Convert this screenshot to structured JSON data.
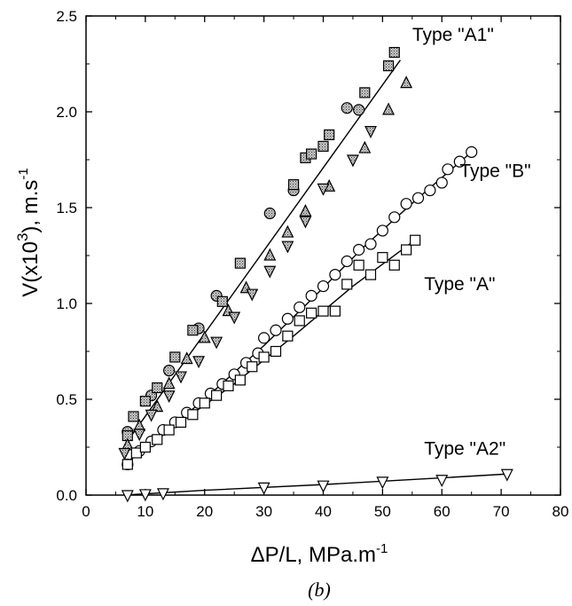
{
  "chart_data": {
    "type": "scatter",
    "caption": "(b)",
    "xlabel_main": "ΔP/L, MPa.m",
    "xlabel_sup": "-1",
    "ylabel_main": "V(x10",
    "ylabel_sup": "3",
    "ylabel_tail": "), m.s",
    "ylabel_tail_sup": "-1",
    "xlim": [
      0,
      80
    ],
    "ylim": [
      0,
      2.5
    ],
    "x_ticks": [
      0,
      10,
      20,
      30,
      40,
      50,
      60,
      70,
      80
    ],
    "y_ticks": [
      "0.0",
      "0.5",
      "1.0",
      "1.5",
      "2.0",
      "2.5"
    ],
    "grid": false,
    "annotations": [
      {
        "text": "Type \"A1\"",
        "x": 55,
        "y": 2.37
      },
      {
        "text": "Type \"B\"",
        "x": 63,
        "y": 1.66
      },
      {
        "text": "Type \"A\"",
        "x": 57,
        "y": 1.07
      },
      {
        "text": "Type \"A2\"",
        "x": 57,
        "y": 0.21
      }
    ],
    "fit_lines": [
      {
        "points": [
          [
            6.5,
            0.26
          ],
          [
            53,
            2.27
          ]
        ]
      },
      {
        "points": [
          [
            6.5,
            0.16
          ],
          [
            20,
            0.5
          ],
          [
            30,
            0.78
          ],
          [
            38,
            1.02
          ],
          [
            47,
            1.3
          ],
          [
            56,
            1.55
          ],
          [
            65,
            1.79
          ]
        ]
      },
      {
        "points": [
          [
            6.5,
            0.16
          ],
          [
            15,
            0.36
          ],
          [
            25,
            0.58
          ],
          [
            35,
            0.83
          ],
          [
            45,
            1.09
          ],
          [
            55,
            1.32
          ]
        ]
      },
      {
        "points": [
          [
            6.5,
            0.0
          ],
          [
            20,
            0.025
          ],
          [
            40,
            0.055
          ],
          [
            60,
            0.09
          ],
          [
            71,
            0.11
          ]
        ]
      }
    ],
    "series": [
      {
        "marker": "circle-filled",
        "points": [
          [
            7,
            0.33
          ],
          [
            11,
            0.52
          ],
          [
            14,
            0.65
          ],
          [
            19,
            0.87
          ],
          [
            22,
            1.04
          ],
          [
            31,
            1.47
          ],
          [
            35,
            1.59
          ],
          [
            44,
            2.02
          ],
          [
            46,
            2.01
          ]
        ]
      },
      {
        "marker": "square-filled",
        "points": [
          [
            7,
            0.31
          ],
          [
            8,
            0.41
          ],
          [
            10,
            0.49
          ],
          [
            12,
            0.56
          ],
          [
            15,
            0.72
          ],
          [
            18,
            0.86
          ],
          [
            23,
            1.01
          ],
          [
            26,
            1.21
          ],
          [
            35,
            1.62
          ],
          [
            37,
            1.76
          ],
          [
            38,
            1.78
          ],
          [
            40,
            1.82
          ],
          [
            41,
            1.88
          ],
          [
            47,
            2.1
          ],
          [
            51,
            2.24
          ],
          [
            52,
            2.31
          ]
        ]
      },
      {
        "marker": "triangle-up-filled",
        "points": [
          [
            7,
            0.26
          ],
          [
            9,
            0.36
          ],
          [
            12,
            0.46
          ],
          [
            14,
            0.58
          ],
          [
            17,
            0.71
          ],
          [
            20,
            0.82
          ],
          [
            24,
            0.96
          ],
          [
            27,
            1.08
          ],
          [
            31,
            1.25
          ],
          [
            34,
            1.37
          ],
          [
            37,
            1.48
          ],
          [
            41,
            1.61
          ],
          [
            47,
            1.81
          ],
          [
            51,
            2.01
          ],
          [
            54,
            2.15
          ]
        ]
      },
      {
        "marker": "triangle-down-filled",
        "points": [
          [
            6.5,
            0.22
          ],
          [
            9,
            0.32
          ],
          [
            11,
            0.42
          ],
          [
            14,
            0.52
          ],
          [
            16,
            0.62
          ],
          [
            19,
            0.7
          ],
          [
            22,
            0.8
          ],
          [
            25,
            0.93
          ],
          [
            28,
            1.05
          ],
          [
            31,
            1.17
          ],
          [
            34,
            1.3
          ],
          [
            37,
            1.43
          ],
          [
            40,
            1.6
          ],
          [
            45,
            1.75
          ],
          [
            48,
            1.9
          ]
        ]
      },
      {
        "marker": "circle-open",
        "points": [
          [
            7,
            0.16
          ],
          [
            9,
            0.23
          ],
          [
            11,
            0.28
          ],
          [
            13,
            0.34
          ],
          [
            15,
            0.38
          ],
          [
            17,
            0.43
          ],
          [
            19,
            0.48
          ],
          [
            21,
            0.53
          ],
          [
            23,
            0.58
          ],
          [
            25,
            0.63
          ],
          [
            27,
            0.69
          ],
          [
            29,
            0.74
          ],
          [
            30,
            0.82
          ],
          [
            32,
            0.86
          ],
          [
            34,
            0.92
          ],
          [
            36,
            0.98
          ],
          [
            38,
            1.04
          ],
          [
            40,
            1.09
          ],
          [
            42,
            1.15
          ],
          [
            44,
            1.22
          ],
          [
            46,
            1.28
          ],
          [
            48,
            1.31
          ],
          [
            50,
            1.38
          ],
          [
            52,
            1.45
          ],
          [
            54,
            1.52
          ],
          [
            56,
            1.55
          ],
          [
            58,
            1.59
          ],
          [
            60,
            1.63
          ],
          [
            61,
            1.7
          ],
          [
            63,
            1.74
          ],
          [
            65,
            1.79
          ]
        ]
      },
      {
        "marker": "square-open",
        "points": [
          [
            7,
            0.16
          ],
          [
            8.5,
            0.22
          ],
          [
            10,
            0.25
          ],
          [
            12,
            0.29
          ],
          [
            14,
            0.34
          ],
          [
            16,
            0.38
          ],
          [
            18,
            0.42
          ],
          [
            20,
            0.48
          ],
          [
            22,
            0.52
          ],
          [
            24,
            0.57
          ],
          [
            26,
            0.6
          ],
          [
            28,
            0.67
          ],
          [
            30,
            0.72
          ],
          [
            32,
            0.75
          ],
          [
            34,
            0.83
          ],
          [
            36,
            0.91
          ],
          [
            38,
            0.95
          ],
          [
            40,
            0.96
          ],
          [
            42,
            0.96
          ],
          [
            44,
            1.1
          ],
          [
            46,
            1.2
          ],
          [
            48,
            1.15
          ],
          [
            50,
            1.24
          ],
          [
            52,
            1.2
          ],
          [
            54,
            1.28
          ],
          [
            55.5,
            1.33
          ]
        ]
      },
      {
        "marker": "triangle-down-open",
        "points": [
          [
            7,
            0.0
          ],
          [
            10,
            0.005
          ],
          [
            13,
            0.01
          ],
          [
            30,
            0.04
          ],
          [
            40,
            0.05
          ],
          [
            50,
            0.07
          ],
          [
            60,
            0.08
          ],
          [
            71,
            0.11
          ]
        ]
      }
    ]
  }
}
